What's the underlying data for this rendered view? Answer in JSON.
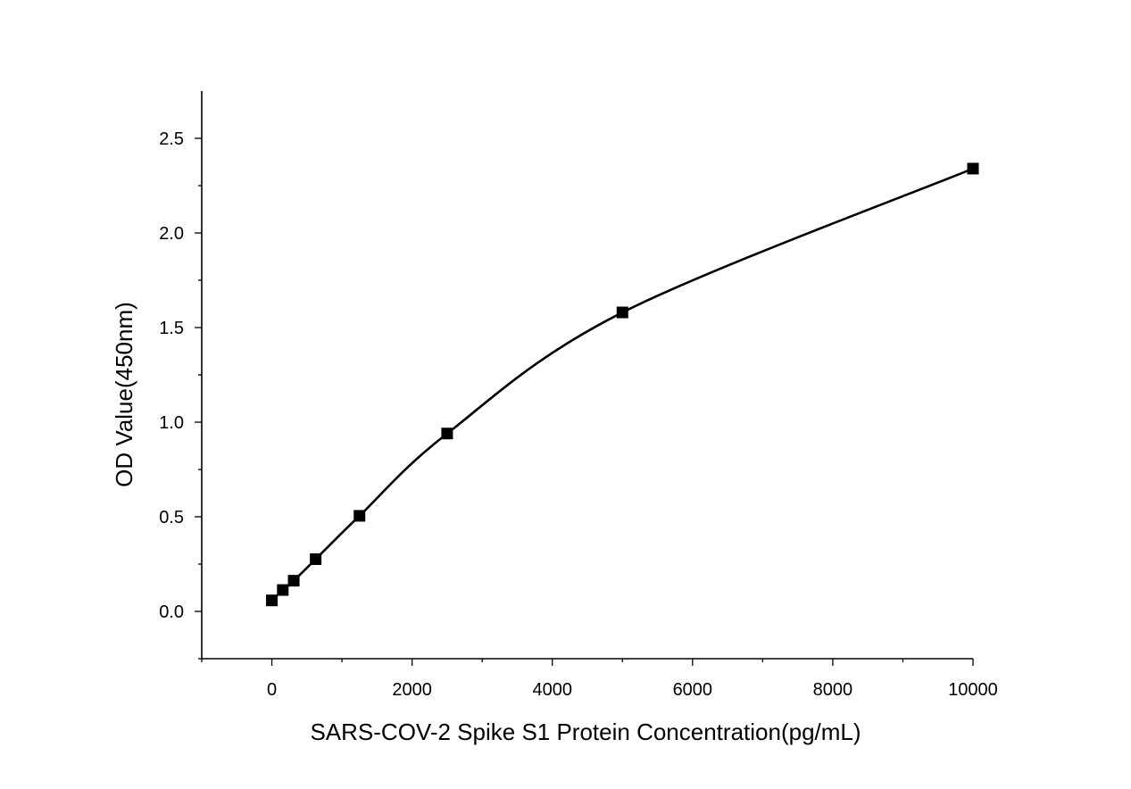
{
  "chart_data": {
    "type": "scatter",
    "title": "",
    "xlabel": "SARS-COV-2 Spike S1 Protein Concentration(pg/mL)",
    "ylabel": "OD Value(450nm)",
    "xlim": [
      -1000,
      10000
    ],
    "ylim": [
      -0.25,
      2.75
    ],
    "xticks": [
      0,
      2000,
      4000,
      6000,
      8000,
      10000
    ],
    "xtick_labels": [
      "0",
      "2000",
      "4000",
      "6000",
      "8000",
      "10000"
    ],
    "yticks": [
      0.0,
      0.5,
      1.0,
      1.5,
      2.0,
      2.5
    ],
    "ytick_labels": [
      "0.0",
      "0.5",
      "1.0",
      "1.5",
      "2.0",
      "2.5"
    ],
    "grid": false,
    "series": [
      {
        "marker": "square",
        "fit_line": true,
        "x": [
          0,
          156,
          312,
          625,
          1250,
          2500,
          5000,
          10000
        ],
        "y": [
          0.058,
          0.113,
          0.162,
          0.276,
          0.505,
          0.94,
          1.58,
          2.34
        ]
      }
    ]
  }
}
